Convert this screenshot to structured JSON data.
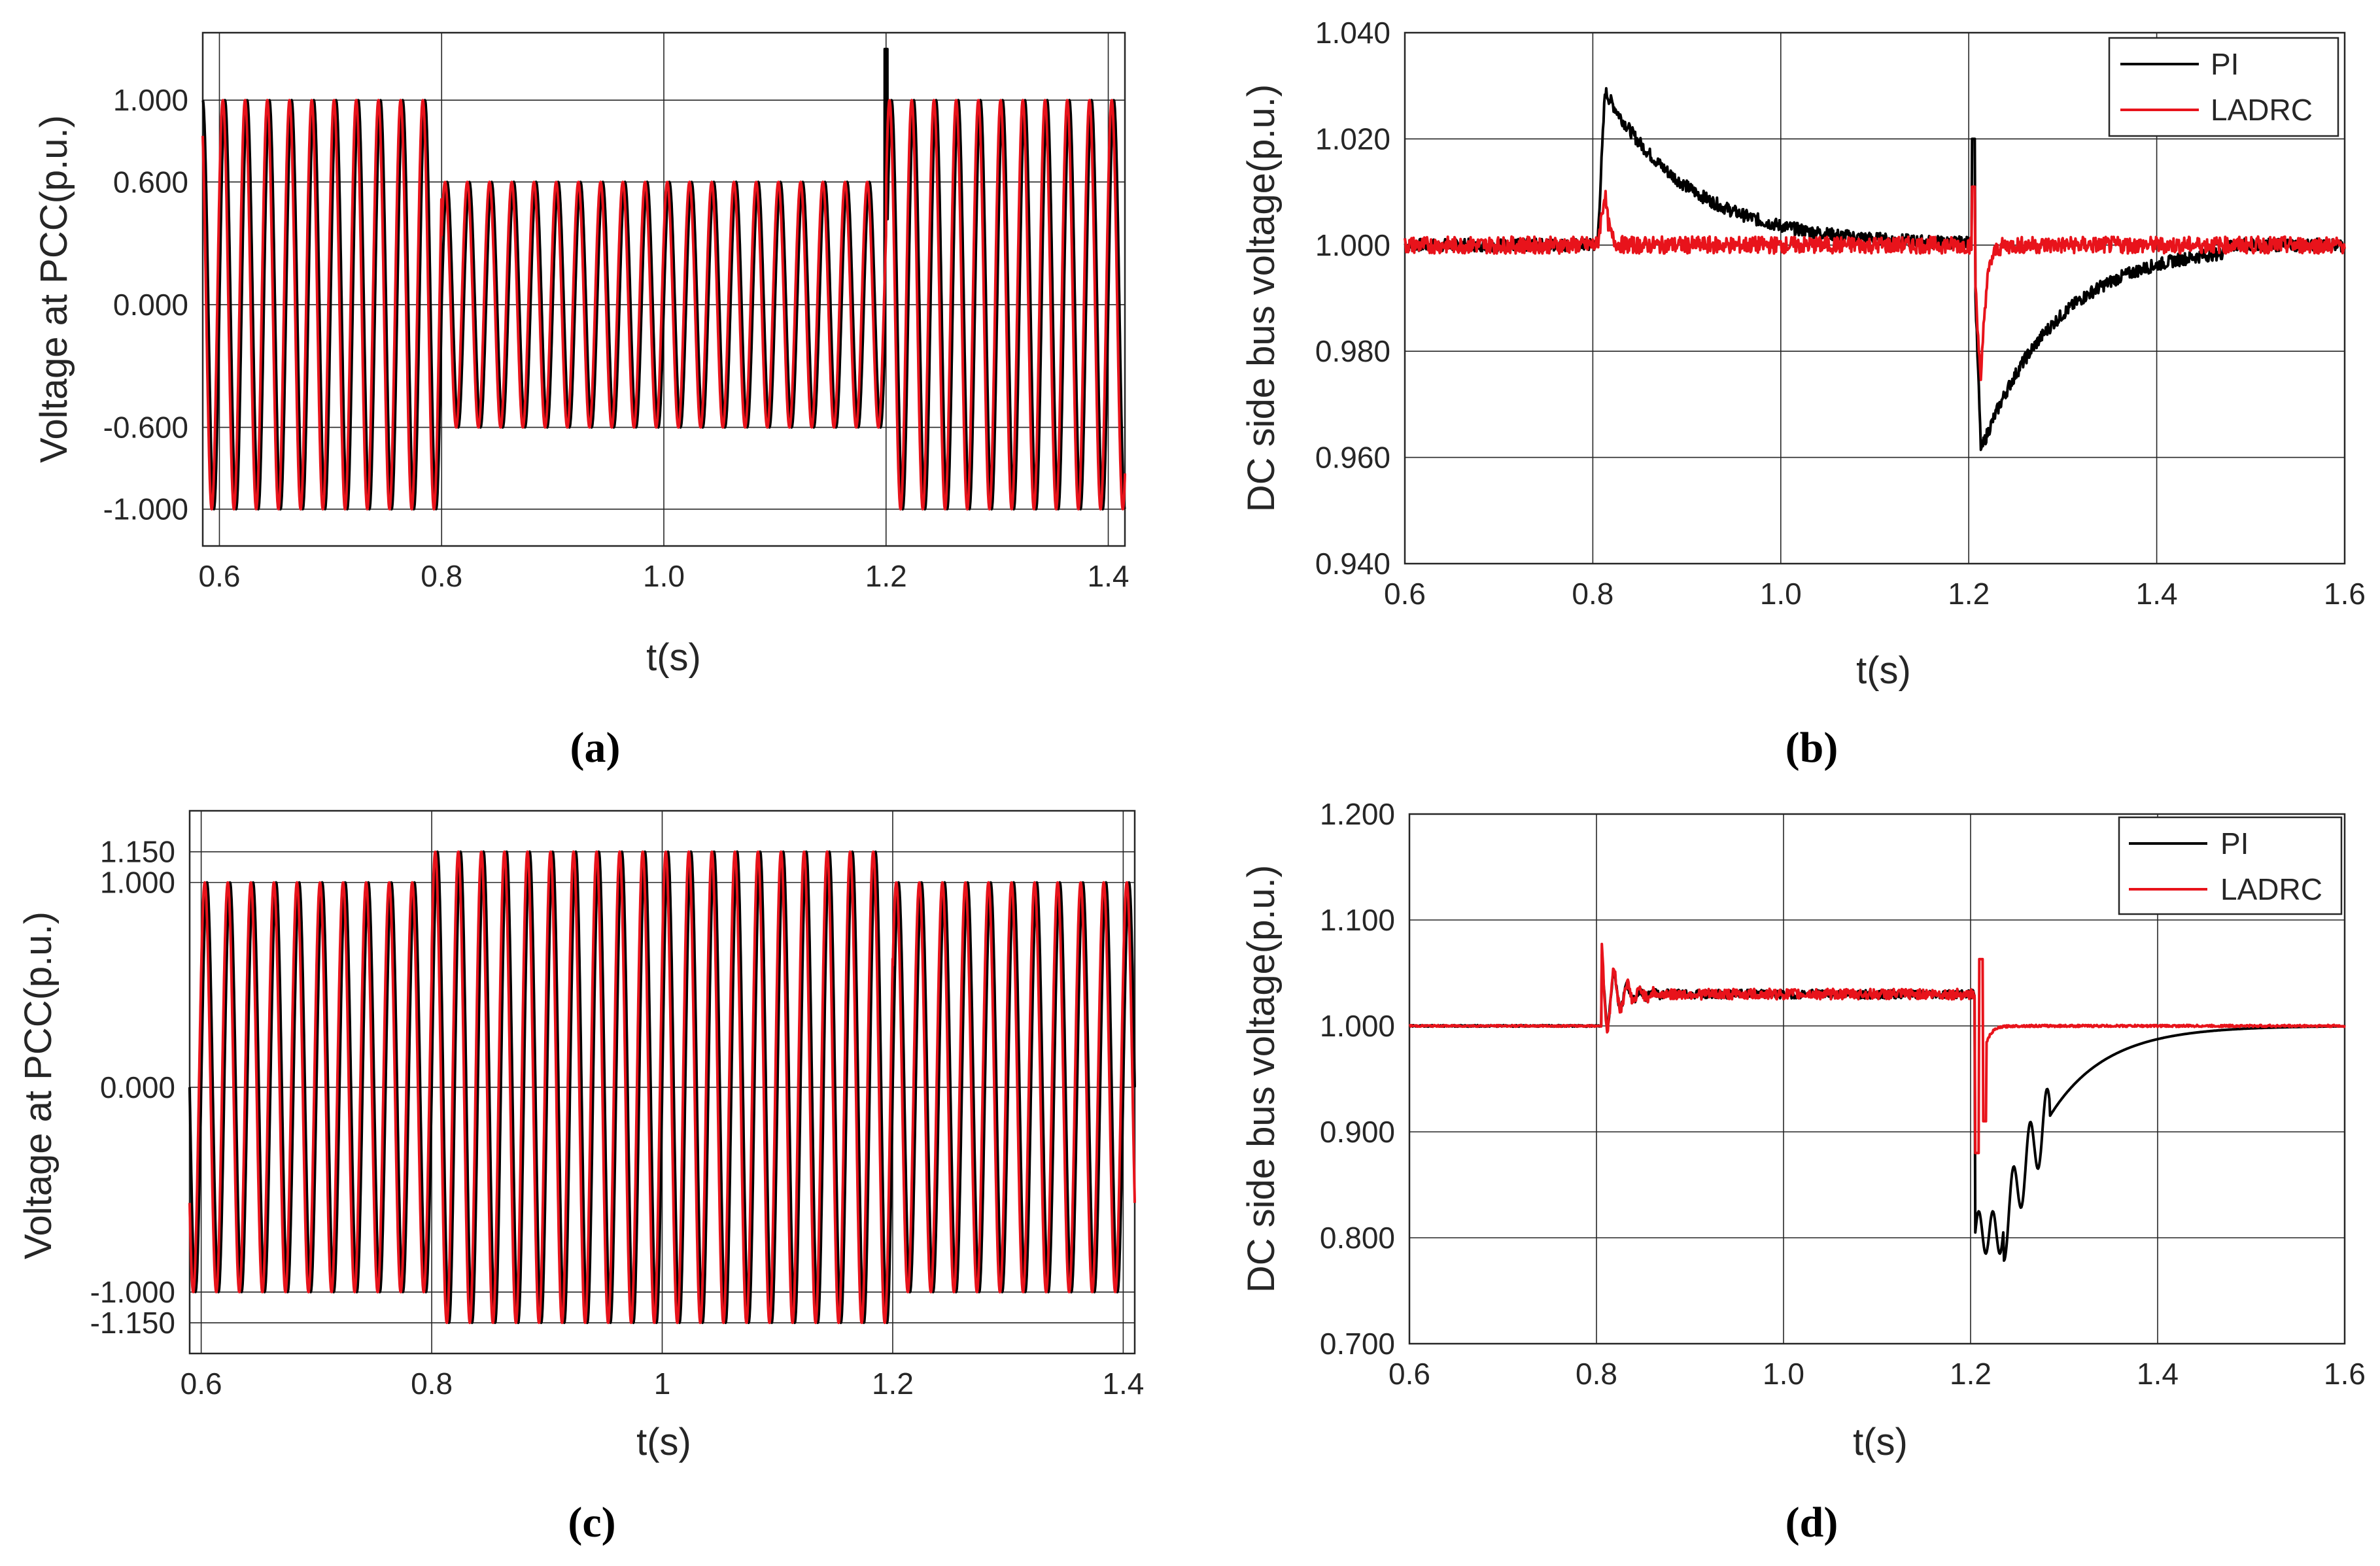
{
  "colors": {
    "PI": "#000000",
    "LADRC": "#e8131b"
  },
  "chart_data": [
    {
      "id": "a",
      "type": "line",
      "caption": "(a)",
      "xlabel": "t(s)",
      "ylabel": "Voltage at PCC(p.u.)",
      "xlim": [
        0.585,
        1.415
      ],
      "ylim": [
        -1.18,
        1.33
      ],
      "xticks": [
        0.6,
        0.8,
        1.0,
        1.2,
        1.4
      ],
      "xtick_labels": [
        "0.6",
        "0.8",
        "1.0",
        "1.2",
        "1.4"
      ],
      "yticks": [
        1.0,
        0.6,
        0.0,
        -0.6,
        -1.0
      ],
      "ytick_labels": [
        "1.000",
        "0.600",
        "0.000",
        "-0.600",
        "-1.000"
      ],
      "grid": true,
      "series": [
        {
          "name": "PI",
          "kind": "sine",
          "freq_hz": 50,
          "phase": 0.0,
          "segments": [
            {
              "t0": 0.585,
              "t1": 0.8,
              "amp": 1.0
            },
            {
              "t0": 0.8,
              "t1": 1.2,
              "amp": 0.6
            },
            {
              "t0": 1.2,
              "t1": 1.415,
              "amp": 1.0
            }
          ],
          "spike": {
            "t": 1.2,
            "value": 1.25
          }
        },
        {
          "name": "LADRC",
          "kind": "sine",
          "freq_hz": 50,
          "phase": 0.6,
          "segments": [
            {
              "t0": 0.585,
              "t1": 0.8,
              "amp": 1.0
            },
            {
              "t0": 0.8,
              "t1": 1.2,
              "amp": 0.6
            },
            {
              "t0": 1.2,
              "t1": 1.415,
              "amp": 1.0
            }
          ]
        }
      ]
    },
    {
      "id": "b",
      "type": "line",
      "caption": "(b)",
      "xlabel": "t(s)",
      "ylabel": "DC side bus voltage(p.u.)",
      "xlim": [
        0.6,
        1.6
      ],
      "ylim": [
        0.94,
        1.04
      ],
      "xticks": [
        0.6,
        0.8,
        1.0,
        1.2,
        1.4,
        1.6
      ],
      "xtick_labels": [
        "0.6",
        "0.8",
        "1.0",
        "1.2",
        "1.4",
        "1.6"
      ],
      "yticks": [
        1.04,
        1.02,
        1.0,
        0.98,
        0.96,
        0.94
      ],
      "ytick_labels": [
        "1.040",
        "1.020",
        "1.000",
        "0.980",
        "0.960",
        "0.940"
      ],
      "grid": true,
      "legend": {
        "position": "top-right",
        "entries": [
          "PI",
          "LADRC"
        ]
      },
      "series": [
        {
          "name": "PI",
          "kind": "dc",
          "base": 1.0,
          "noise": 0.0012,
          "events": [
            {
              "t": 0.805,
              "peak": 1.029,
              "tau": 0.09,
              "settle": 1.0
            },
            {
              "t": 1.205,
              "peak": 0.961,
              "tau": 0.08,
              "settle": 1.0,
              "spike": 1.02
            }
          ]
        },
        {
          "name": "LADRC",
          "kind": "dc",
          "base": 1.0,
          "noise": 0.0016,
          "events": [
            {
              "t": 0.805,
              "peak": 1.01,
              "tau": 0.004,
              "settle": 1.0
            },
            {
              "t": 1.205,
              "peak": 0.973,
              "tau": 0.005,
              "settle": 1.0,
              "spike": 1.011
            }
          ]
        }
      ]
    },
    {
      "id": "c",
      "type": "line",
      "caption": "(c)",
      "xlabel": "t(s)",
      "ylabel": "Voltage at PCC(p.u.)",
      "xlim": [
        0.59,
        1.41
      ],
      "ylim": [
        -1.3,
        1.35
      ],
      "xticks": [
        0.6,
        0.8,
        1.0,
        1.2,
        1.4
      ],
      "xtick_labels": [
        "0.6",
        "0.8",
        "1",
        "1.2",
        "1.4"
      ],
      "yticks": [
        1.15,
        1.0,
        0.0,
        -1.0,
        -1.15
      ],
      "ytick_labels": [
        "1.150",
        "1.000",
        "0.000",
        "-1.000",
        "-1.150"
      ],
      "grid": true,
      "series": [
        {
          "name": "PI",
          "kind": "sine",
          "freq_hz": 50,
          "phase": 0.0,
          "segments": [
            {
              "t0": 0.59,
              "t1": 0.8,
              "amp": 1.0
            },
            {
              "t0": 0.8,
              "t1": 1.2,
              "amp": 1.15
            },
            {
              "t0": 1.2,
              "t1": 1.41,
              "amp": 1.0
            }
          ]
        },
        {
          "name": "LADRC",
          "kind": "sine",
          "freq_hz": 50,
          "phase": 0.6,
          "segments": [
            {
              "t0": 0.59,
              "t1": 0.8,
              "amp": 1.0
            },
            {
              "t0": 0.8,
              "t1": 1.2,
              "amp": 1.15
            },
            {
              "t0": 1.2,
              "t1": 1.41,
              "amp": 1.0
            }
          ]
        }
      ]
    },
    {
      "id": "d",
      "type": "line",
      "caption": "(d)",
      "xlabel": "t(s)",
      "ylabel": "DC side bus voltage(p.u.)",
      "xlim": [
        0.6,
        1.6
      ],
      "ylim": [
        0.7,
        1.2
      ],
      "xticks": [
        0.6,
        0.8,
        1.0,
        1.2,
        1.4,
        1.6
      ],
      "xtick_labels": [
        "0.6",
        "0.8",
        "1.0",
        "1.2",
        "1.4",
        "1.6"
      ],
      "yticks": [
        1.2,
        1.1,
        1.0,
        0.9,
        0.8,
        0.7
      ],
      "ytick_labels": [
        "1.200",
        "1.100",
        "1.000",
        "0.900",
        "0.800",
        "0.700"
      ],
      "grid": true,
      "legend": {
        "position": "top-right",
        "entries": [
          "PI",
          "LADRC"
        ]
      },
      "series": [
        {
          "name": "PI",
          "kind": "dc_step",
          "base": 1.0,
          "mid": 1.03,
          "noise": 0.004,
          "events": [
            {
              "t": 0.805,
              "overshoot": 1.07
            },
            {
              "t": 1.205,
              "dip": 0.805,
              "recover_tau": 0.06
            }
          ]
        },
        {
          "name": "LADRC",
          "kind": "dc_step",
          "base": 1.0,
          "mid": 1.03,
          "noise": 0.005,
          "events": [
            {
              "t": 0.805,
              "overshoot": 1.078
            },
            {
              "t": 1.205,
              "dip": 0.88,
              "spike": 1.063,
              "recover_tau": 0.006
            }
          ]
        }
      ]
    }
  ]
}
